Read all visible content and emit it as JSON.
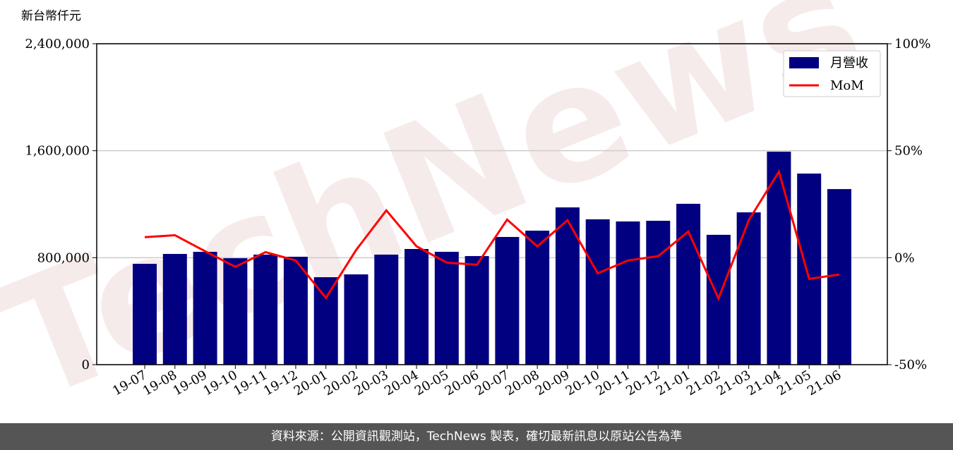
{
  "chart_data": {
    "type": "bar-line",
    "y_label": "新台幣仟元",
    "watermark": "TechNews",
    "categories": [
      "19-07",
      "19-08",
      "19-09",
      "19-10",
      "19-11",
      "19-12",
      "20-01",
      "20-02",
      "20-03",
      "20-04",
      "20-05",
      "20-06",
      "20-07",
      "20-08",
      "20-09",
      "20-10",
      "20-11",
      "20-12",
      "21-01",
      "21-02",
      "21-03",
      "21-04",
      "21-05",
      "21-06"
    ],
    "series": [
      {
        "name": "月營收",
        "type": "bar",
        "color": "#000080",
        "values": [
          754000,
          828000,
          844000,
          796000,
          823000,
          807000,
          654000,
          675000,
          823000,
          865000,
          844000,
          812000,
          955000,
          1002000,
          1176000,
          1087000,
          1071000,
          1076000,
          1203000,
          971000,
          1139000,
          1593000,
          1429000,
          1313000
        ]
      },
      {
        "name": "MoM",
        "type": "line",
        "color": "#ff0000",
        "axis": "y2",
        "values": [
          9.6,
          10.5,
          3,
          -4.3,
          2.6,
          -1.3,
          -18.8,
          3.6,
          22.1,
          5.3,
          -2.3,
          -3.3,
          17.8,
          5.3,
          17.5,
          -7.3,
          -1.3,
          0.7,
          12.2,
          -19.1,
          17.5,
          40.2,
          -9.9,
          -7.9
        ]
      }
    ],
    "ylim": [
      0,
      2400000
    ],
    "yticks": [
      0,
      {
        "value": 800000,
        "label": "800,000"
      },
      {
        "value": 1600000,
        "label": "1,600,000"
      },
      {
        "value": 2400000,
        "label": "2,400,000"
      }
    ],
    "y2lim": [
      -50,
      100
    ],
    "y2ticks": [
      {
        "value": -50,
        "label": "-50%"
      },
      {
        "value": 0,
        "label": "0%"
      },
      {
        "value": 50,
        "label": "50%"
      },
      {
        "value": 100,
        "label": "100%"
      }
    ],
    "grid": true,
    "legend": "upper right",
    "footer": "資料來源：公開資訊觀測站，TechNews 製表，確切最新訊息以原站公告為準"
  }
}
